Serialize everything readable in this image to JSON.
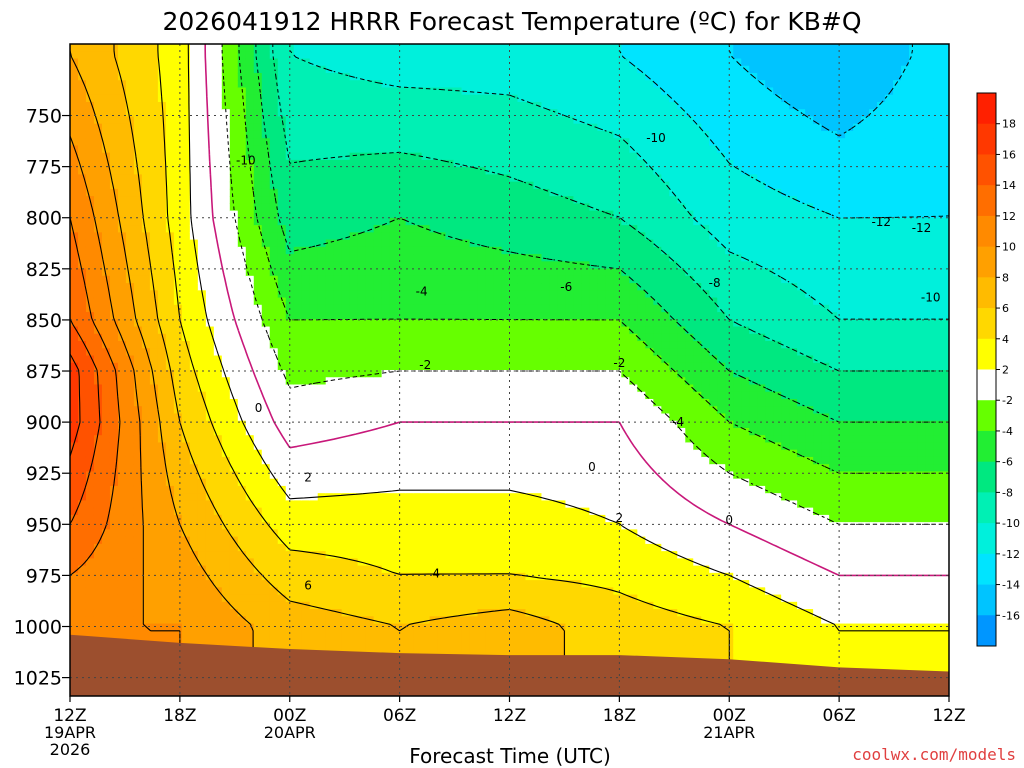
{
  "chart_data": {
    "type": "heatmap",
    "title": "2026041912 HRRR Forecast Temperature (ºC) for KB#Q",
    "xlabel": "Forecast Time (UTC)",
    "ylabel": "",
    "credit": "coolwx.com/models",
    "x_range_hours": [
      0,
      48
    ],
    "y_range_hPa": [
      715,
      1034
    ],
    "x_ticks": [
      {
        "hour": 0,
        "label": "12Z",
        "sub1": "19APR",
        "sub2": "2026"
      },
      {
        "hour": 6,
        "label": "18Z",
        "sub1": "",
        "sub2": ""
      },
      {
        "hour": 12,
        "label": "00Z",
        "sub1": "20APR",
        "sub2": ""
      },
      {
        "hour": 18,
        "label": "06Z",
        "sub1": "",
        "sub2": ""
      },
      {
        "hour": 24,
        "label": "12Z",
        "sub1": "",
        "sub2": ""
      },
      {
        "hour": 30,
        "label": "18Z",
        "sub1": "",
        "sub2": ""
      },
      {
        "hour": 36,
        "label": "00Z",
        "sub1": "21APR",
        "sub2": ""
      },
      {
        "hour": 42,
        "label": "06Z",
        "sub1": "",
        "sub2": ""
      },
      {
        "hour": 48,
        "label": "12Z",
        "sub1": "",
        "sub2": ""
      }
    ],
    "y_ticks": [
      750,
      775,
      800,
      825,
      850,
      875,
      900,
      925,
      950,
      975,
      1000,
      1025
    ],
    "colorbar": {
      "labels": [
        18,
        16,
        14,
        12,
        10,
        8,
        6,
        4,
        2,
        -2,
        -4,
        -6,
        -8,
        -10,
        -12,
        -14,
        -16
      ],
      "bins": [
        {
          "range": [
            18,
            20
          ],
          "color": "#ff2000"
        },
        {
          "range": [
            16,
            18
          ],
          "color": "#ff3800"
        },
        {
          "range": [
            14,
            16
          ],
          "color": "#ff5200"
        },
        {
          "range": [
            12,
            14
          ],
          "color": "#ff6e00"
        },
        {
          "range": [
            10,
            12
          ],
          "color": "#ff8a00"
        },
        {
          "range": [
            8,
            10
          ],
          "color": "#ffa000"
        },
        {
          "range": [
            6,
            8
          ],
          "color": "#ffbb00"
        },
        {
          "range": [
            4,
            6
          ],
          "color": "#ffd800"
        },
        {
          "range": [
            2,
            4
          ],
          "color": "#ffff00"
        },
        {
          "range": [
            -2,
            2
          ],
          "color": "#ffffff"
        },
        {
          "range": [
            -4,
            -2
          ],
          "color": "#66ff00"
        },
        {
          "range": [
            -6,
            -4
          ],
          "color": "#22ee33"
        },
        {
          "range": [
            -8,
            -6
          ],
          "color": "#00e880"
        },
        {
          "range": [
            -10,
            -8
          ],
          "color": "#00f0b4"
        },
        {
          "range": [
            -12,
            -10
          ],
          "color": "#00f0dc"
        },
        {
          "range": [
            -14,
            -12
          ],
          "color": "#00e4ff"
        },
        {
          "range": [
            -16,
            -14
          ],
          "color": "#00c4ff"
        },
        {
          "range": [
            -18,
            -16
          ],
          "color": "#0096ff"
        }
      ]
    },
    "ground_color": "#9c4f2e",
    "zero_line_color": "#c8187a",
    "ground_pressure_hPa": [
      [
        0,
        1004
      ],
      [
        6,
        1008
      ],
      [
        12,
        1011
      ],
      [
        18,
        1013
      ],
      [
        24,
        1014
      ],
      [
        30,
        1014
      ],
      [
        36,
        1016
      ],
      [
        42,
        1020
      ],
      [
        48,
        1022
      ]
    ],
    "temperature_profiles_by_hour": [
      {
        "hour": 0,
        "levels_hPa": [
          720,
          760,
          800,
          850,
          875,
          900,
          950,
          1000
        ],
        "temps_c": [
          8,
          10,
          12,
          14,
          17,
          17,
          14,
          10
        ]
      },
      {
        "hour": 6,
        "levels_hPa": [
          720,
          800,
          850,
          900,
          950,
          1000
        ],
        "temps_c": [
          3,
          3,
          4,
          6,
          8,
          10
        ]
      },
      {
        "hour": 12,
        "levels_hPa": [
          720,
          800,
          850,
          900,
          925,
          950,
          975,
          1000
        ],
        "temps_c": [
          -10,
          -7,
          -4,
          -1,
          1,
          3,
          5,
          7
        ]
      },
      {
        "hour": 18,
        "levels_hPa": [
          720,
          800,
          850,
          875,
          900,
          950,
          975,
          1000
        ],
        "temps_c": [
          -11,
          -6,
          -4,
          -2,
          0,
          3,
          4,
          6
        ]
      },
      {
        "hour": 24,
        "levels_hPa": [
          720,
          800,
          850,
          875,
          900,
          950,
          975,
          1000
        ],
        "temps_c": [
          -11,
          -7,
          -4,
          -2,
          0,
          3,
          4,
          7
        ]
      },
      {
        "hour": 30,
        "levels_hPa": [
          720,
          800,
          850,
          875,
          900,
          925,
          950,
          1000
        ],
        "temps_c": [
          -12,
          -8,
          -4,
          -2,
          0,
          1,
          2,
          5
        ]
      },
      {
        "hour": 36,
        "levels_hPa": [
          720,
          800,
          850,
          900,
          950,
          975,
          1000
        ],
        "temps_c": [
          -14,
          -11,
          -8,
          -4,
          0,
          2,
          4
        ]
      },
      {
        "hour": 42,
        "levels_hPa": [
          720,
          800,
          850,
          900,
          950,
          975,
          1000
        ],
        "temps_c": [
          -16,
          -12,
          -10,
          -6,
          -2,
          0,
          2
        ]
      },
      {
        "hour": 48,
        "levels_hPa": [
          720,
          800,
          850,
          900,
          950,
          975,
          1000
        ],
        "temps_c": [
          -13,
          -12,
          -10,
          -6,
          -2,
          0,
          2
        ]
      }
    ],
    "contour_labels": [
      {
        "text": "-10",
        "hour": 9.6,
        "hPa": 772
      },
      {
        "text": "-10",
        "hour": 32.0,
        "hPa": 761
      },
      {
        "text": "-12",
        "hour": 44.3,
        "hPa": 802
      },
      {
        "text": "-12",
        "hour": 46.5,
        "hPa": 805
      },
      {
        "text": "-10",
        "hour": 47.0,
        "hPa": 839
      },
      {
        "text": "-8",
        "hour": 35.2,
        "hPa": 832
      },
      {
        "text": "-6",
        "hour": 27.1,
        "hPa": 834
      },
      {
        "text": "-4",
        "hour": 19.2,
        "hPa": 836
      },
      {
        "text": "-2",
        "hour": 19.4,
        "hPa": 872
      },
      {
        "text": "-2",
        "hour": 30.0,
        "hPa": 871
      },
      {
        "text": "-4",
        "hour": 33.2,
        "hPa": 900
      },
      {
        "text": "0",
        "hour": 10.3,
        "hPa": 893
      },
      {
        "text": "0",
        "hour": 28.5,
        "hPa": 922
      },
      {
        "text": "0",
        "hour": 36.0,
        "hPa": 948
      },
      {
        "text": "2",
        "hour": 13.0,
        "hPa": 927
      },
      {
        "text": "2",
        "hour": 30.0,
        "hPa": 947
      },
      {
        "text": "4",
        "hour": 20.0,
        "hPa": 974
      },
      {
        "text": "6",
        "hour": 13.0,
        "hPa": 980
      }
    ]
  }
}
